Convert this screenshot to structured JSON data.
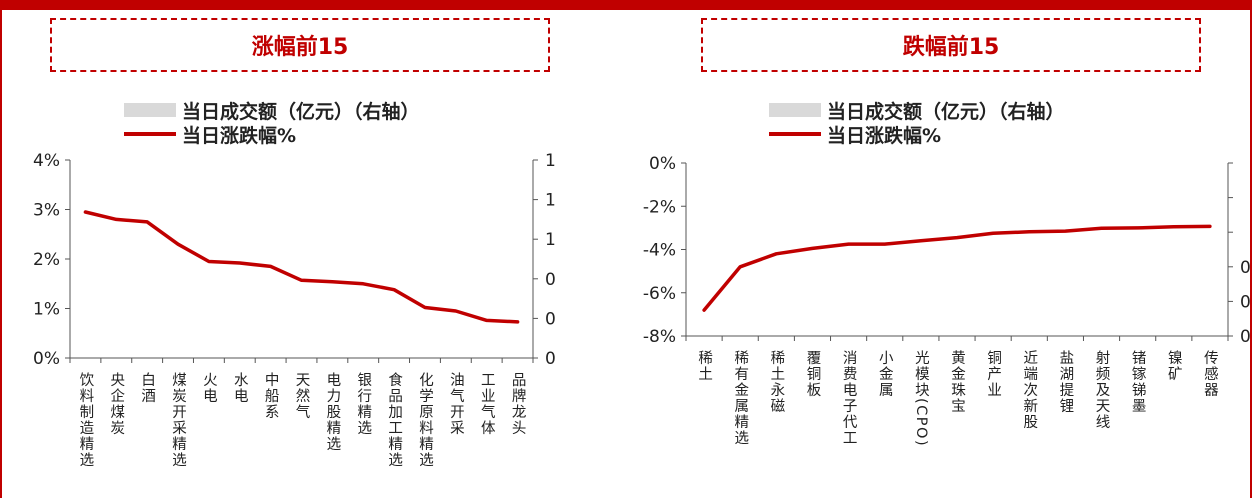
{
  "colors": {
    "accent": "#c00000",
    "bar": "#d9d9d9",
    "axis": "#555555"
  },
  "chart_data": [
    {
      "type": "line",
      "title": "涨幅前15",
      "legend": [
        "当日成交额（亿元）（右轴）",
        "当日涨跌幅%"
      ],
      "legend_position": "top",
      "categories": [
        "饮料制造精选",
        "央企煤炭",
        "白酒",
        "煤炭开采精选",
        "火电",
        "水电",
        "中船系",
        "天然气",
        "电力股精选",
        "银行精选",
        "食品加工精选",
        "化学原料精选",
        "油气开采",
        "工业气体",
        "品牌龙头"
      ],
      "series": [
        {
          "name": "当日涨跌幅%",
          "values": [
            2.95,
            2.8,
            2.75,
            2.3,
            1.95,
            1.92,
            1.85,
            1.57,
            1.54,
            1.5,
            1.38,
            1.02,
            0.95,
            0.76,
            0.73
          ]
        }
      ],
      "ylim": [
        0,
        4
      ],
      "y_ticks": [
        "0%",
        "1%",
        "2%",
        "3%",
        "4%"
      ],
      "y2_ticks": [
        "0",
        "0",
        "0",
        "1",
        "1",
        "1"
      ]
    },
    {
      "type": "line",
      "title": "跌幅前15",
      "legend": [
        "当日成交额（亿元）（右轴）",
        "当日涨跌幅%"
      ],
      "legend_position": "top",
      "categories": [
        "稀土",
        "稀有金属精选",
        "稀土永磁",
        "覆铜板",
        "消费电子代工",
        "小金属",
        "光模块(CPO)",
        "黄金珠宝",
        "铜产业",
        "近端次新股",
        "盐湖提锂",
        "射频及天线",
        "锗镓锑墨",
        "镍矿",
        "传感器"
      ],
      "series": [
        {
          "name": "当日涨跌幅%",
          "values": [
            -6.8,
            -4.8,
            -4.2,
            -3.95,
            -3.75,
            -3.75,
            -3.6,
            -3.45,
            -3.25,
            -3.18,
            -3.15,
            -3.02,
            -3.0,
            -2.95,
            -2.93
          ]
        }
      ],
      "ylim": [
        -8,
        0
      ],
      "y_ticks": [
        "-8%",
        "-6%",
        "-4%",
        "-2%",
        "0%"
      ],
      "y2_ticks": [
        "0",
        "0",
        "0",
        "",
        "",
        ""
      ]
    }
  ]
}
